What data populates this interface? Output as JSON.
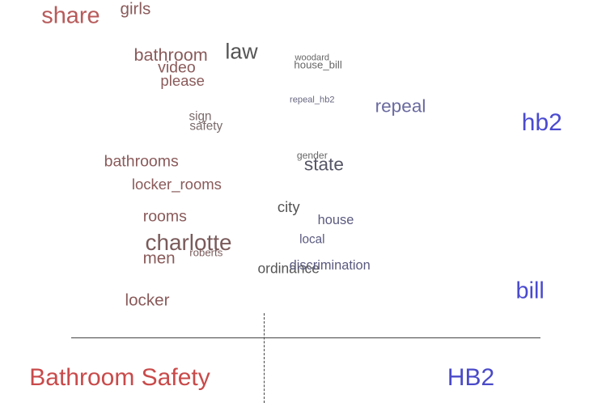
{
  "chart_data": {
    "type": "scatter",
    "description_type": "word-scatter",
    "x_axis": {
      "left_label": "Bathroom Safety",
      "right_label": "HB2",
      "left_color": "#c94a4a",
      "right_color": "#4a4ac9"
    },
    "words": [
      {
        "text": "share",
        "x": 0.12,
        "y": 0.95,
        "weight": 0.95,
        "color": "#b85a5a"
      },
      {
        "text": "girls",
        "x": 0.23,
        "y": 0.97,
        "weight": 0.55,
        "color": "#8a5a5a"
      },
      {
        "text": "bathroom",
        "x": 0.29,
        "y": 0.83,
        "weight": 0.6,
        "color": "#8a5a5a"
      },
      {
        "text": "law",
        "x": 0.41,
        "y": 0.84,
        "weight": 0.85,
        "color": "#555555"
      },
      {
        "text": "video",
        "x": 0.3,
        "y": 0.79,
        "weight": 0.5,
        "color": "#8a5a5a"
      },
      {
        "text": "please",
        "x": 0.31,
        "y": 0.75,
        "weight": 0.45,
        "color": "#8a5a5a"
      },
      {
        "text": "woodard",
        "x": 0.53,
        "y": 0.82,
        "weight": 0.1,
        "color": "#666666"
      },
      {
        "text": "house_bill",
        "x": 0.54,
        "y": 0.8,
        "weight": 0.2,
        "color": "#666666"
      },
      {
        "text": "repeal_hb2",
        "x": 0.53,
        "y": 0.69,
        "weight": 0.1,
        "color": "#666680"
      },
      {
        "text": "repeal",
        "x": 0.68,
        "y": 0.67,
        "weight": 0.65,
        "color": "#6a6aa0"
      },
      {
        "text": "hb2",
        "x": 0.92,
        "y": 0.62,
        "weight": 1.0,
        "color": "#4a4ad0"
      },
      {
        "text": "sign",
        "x": 0.34,
        "y": 0.64,
        "weight": 0.3,
        "color": "#7a6a6a"
      },
      {
        "text": "safety",
        "x": 0.35,
        "y": 0.61,
        "weight": 0.3,
        "color": "#7a6a6a"
      },
      {
        "text": "gender",
        "x": 0.53,
        "y": 0.52,
        "weight": 0.15,
        "color": "#666666"
      },
      {
        "text": "bathrooms",
        "x": 0.24,
        "y": 0.5,
        "weight": 0.5,
        "color": "#8a5a5a"
      },
      {
        "text": "state",
        "x": 0.55,
        "y": 0.49,
        "weight": 0.65,
        "color": "#555566"
      },
      {
        "text": "locker_rooms",
        "x": 0.3,
        "y": 0.43,
        "weight": 0.45,
        "color": "#8a5a5a"
      },
      {
        "text": "city",
        "x": 0.49,
        "y": 0.36,
        "weight": 0.45,
        "color": "#555555"
      },
      {
        "text": "rooms",
        "x": 0.28,
        "y": 0.33,
        "weight": 0.5,
        "color": "#8a5a5a"
      },
      {
        "text": "house",
        "x": 0.57,
        "y": 0.32,
        "weight": 0.35,
        "color": "#5a5a80"
      },
      {
        "text": "charlotte",
        "x": 0.32,
        "y": 0.25,
        "weight": 0.9,
        "color": "#7a5a5a"
      },
      {
        "text": "local",
        "x": 0.53,
        "y": 0.26,
        "weight": 0.3,
        "color": "#5a5a80"
      },
      {
        "text": "roberts",
        "x": 0.35,
        "y": 0.22,
        "weight": 0.2,
        "color": "#7a5a5a"
      },
      {
        "text": "men",
        "x": 0.27,
        "y": 0.2,
        "weight": 0.55,
        "color": "#8a5a5a"
      },
      {
        "text": "ordinance",
        "x": 0.49,
        "y": 0.17,
        "weight": 0.4,
        "color": "#555555"
      },
      {
        "text": "discrimination",
        "x": 0.56,
        "y": 0.18,
        "weight": 0.35,
        "color": "#5a5a80"
      },
      {
        "text": "bill",
        "x": 0.9,
        "y": 0.1,
        "weight": 0.95,
        "color": "#4a4ad0"
      },
      {
        "text": "locker",
        "x": 0.25,
        "y": 0.07,
        "weight": 0.55,
        "color": "#8a5a5a"
      }
    ]
  }
}
